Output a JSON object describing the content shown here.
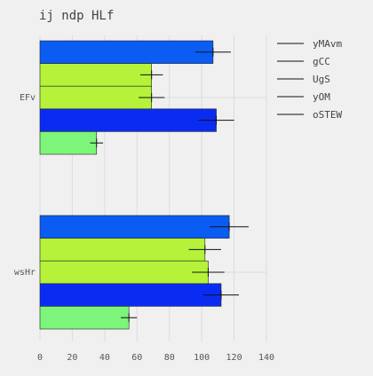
{
  "chart_data": {
    "type": "bar",
    "orientation": "horizontal",
    "title": "ij ndp HLf",
    "xlabel": "",
    "ylabel": "",
    "xlim": [
      0,
      140
    ],
    "xticks": [
      0,
      20,
      40,
      60,
      80,
      100,
      120,
      140
    ],
    "categories": [
      "EFv",
      "wsHr"
    ],
    "grid": true,
    "legend_position": "top-right",
    "series": [
      {
        "name": "yMAvm",
        "color": "#0a5cf2",
        "values": [
          107,
          117
        ],
        "errors": [
          11,
          12
        ]
      },
      {
        "name": "gCC",
        "color": "#b6f23a",
        "values": [
          69,
          102
        ],
        "errors": [
          7,
          10
        ]
      },
      {
        "name": "UgS",
        "color": "#b6f23a",
        "values": [
          69,
          104
        ],
        "errors": [
          8,
          10
        ]
      },
      {
        "name": "yOM",
        "color": "#0a2cf2",
        "values": [
          109,
          112
        ],
        "errors": [
          11,
          11
        ]
      },
      {
        "name": "oSTEW",
        "color": "#7cf57a",
        "values": [
          35,
          55
        ],
        "errors": [
          4,
          5
        ]
      }
    ]
  }
}
